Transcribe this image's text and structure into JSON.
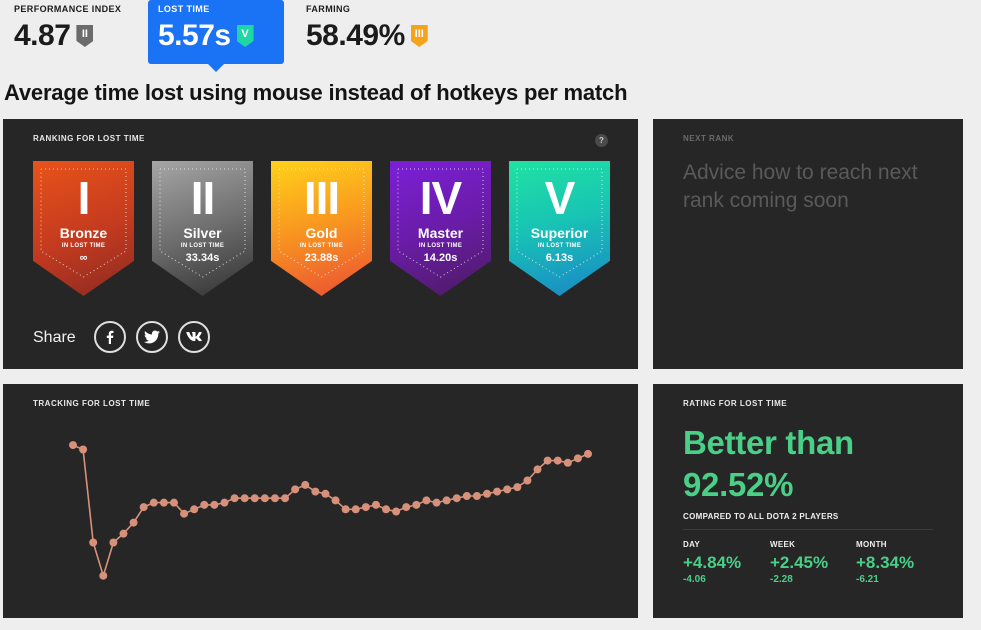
{
  "tabs": [
    {
      "label": "PERFORMANCE INDEX",
      "value": "4.87",
      "badge": "II",
      "badge_color": "#6b6b6b"
    },
    {
      "label": "LOST TIME",
      "value": "5.57s",
      "badge": "V",
      "badge_color": "#1fd6a6"
    },
    {
      "label": "FARMING",
      "value": "58.49%",
      "badge": "III",
      "badge_color": "#f7a21b"
    }
  ],
  "section_title": "Average time lost using mouse instead of hotkeys per match",
  "ranking": {
    "label": "RANKING FOR LOST TIME",
    "help": "?",
    "ranks": [
      {
        "numeral": "I",
        "name": "Bronze",
        "sub": "IN LOST TIME",
        "time": "∞",
        "color_top": "#e8531a",
        "color_bottom": "#8c2a22"
      },
      {
        "numeral": "II",
        "name": "Silver",
        "sub": "IN LOST TIME",
        "time": "33.34s",
        "color_top": "#9a9a9a",
        "color_bottom": "#2f2f2f"
      },
      {
        "numeral": "III",
        "name": "Gold",
        "sub": "IN LOST TIME",
        "time": "23.88s",
        "color_top": "#ffcf1a",
        "color_bottom": "#ec5f2a"
      },
      {
        "numeral": "IV",
        "name": "Master",
        "sub": "IN LOST TIME",
        "time": "14.20s",
        "color_top": "#7a1fd6",
        "color_bottom": "#4a1b6b"
      },
      {
        "numeral": "V",
        "name": "Superior",
        "sub": "IN LOST TIME",
        "time": "6.13s",
        "color_top": "#1de0a8",
        "color_bottom": "#1b8bc7"
      }
    ],
    "share_label": "Share",
    "social": [
      {
        "name": "facebook-icon",
        "glyph": "f"
      },
      {
        "name": "twitter-icon",
        "glyph": "t"
      },
      {
        "name": "vk-icon",
        "glyph": "vk"
      }
    ]
  },
  "next_rank": {
    "label": "NEXT RANK",
    "advice": "Advice how to reach next rank coming soon"
  },
  "tracking": {
    "label": "TRACKING FOR LOST TIME"
  },
  "chart_data": {
    "type": "line",
    "title": "TRACKING FOR LOST TIME",
    "xlabel": "",
    "ylabel": "",
    "x": [
      1,
      2,
      3,
      4,
      5,
      6,
      7,
      8,
      9,
      10,
      11,
      12,
      13,
      14,
      15,
      16,
      17,
      18,
      19,
      20,
      21,
      22,
      23,
      24,
      25,
      26,
      27,
      28,
      29,
      30,
      31,
      32,
      33,
      34,
      35,
      36,
      37,
      38,
      39,
      40,
      41,
      42,
      43,
      44,
      45,
      46,
      47,
      48,
      49,
      50,
      51,
      52
    ],
    "values": [
      5.0,
      4.8,
      0.6,
      -0.9,
      0.6,
      1.0,
      1.5,
      2.2,
      2.4,
      2.4,
      2.4,
      1.9,
      2.1,
      2.3,
      2.3,
      2.4,
      2.6,
      2.6,
      2.6,
      2.6,
      2.6,
      2.6,
      3.0,
      3.2,
      2.9,
      2.8,
      2.5,
      2.1,
      2.1,
      2.2,
      2.3,
      2.1,
      2.0,
      2.2,
      2.3,
      2.5,
      2.4,
      2.5,
      2.6,
      2.7,
      2.7,
      2.8,
      2.9,
      3.0,
      3.1,
      3.4,
      3.9,
      4.3,
      4.3,
      4.2,
      4.4,
      4.6
    ],
    "ylim": [
      -1.5,
      5.5
    ],
    "grid": false,
    "line_color": "#d7917a"
  },
  "rating": {
    "label": "RATING FOR LOST TIME",
    "headline_1": "Better than",
    "headline_2": "92.52%",
    "compare": "COMPARED TO ALL DOTA 2 PLAYERS",
    "deltas": [
      {
        "label": "DAY",
        "pct": "+4.84%",
        "raw": "-4.06"
      },
      {
        "label": "WEEK",
        "pct": "+2.45%",
        "raw": "-2.28"
      },
      {
        "label": "MONTH",
        "pct": "+8.34%",
        "raw": "-6.21"
      }
    ]
  }
}
